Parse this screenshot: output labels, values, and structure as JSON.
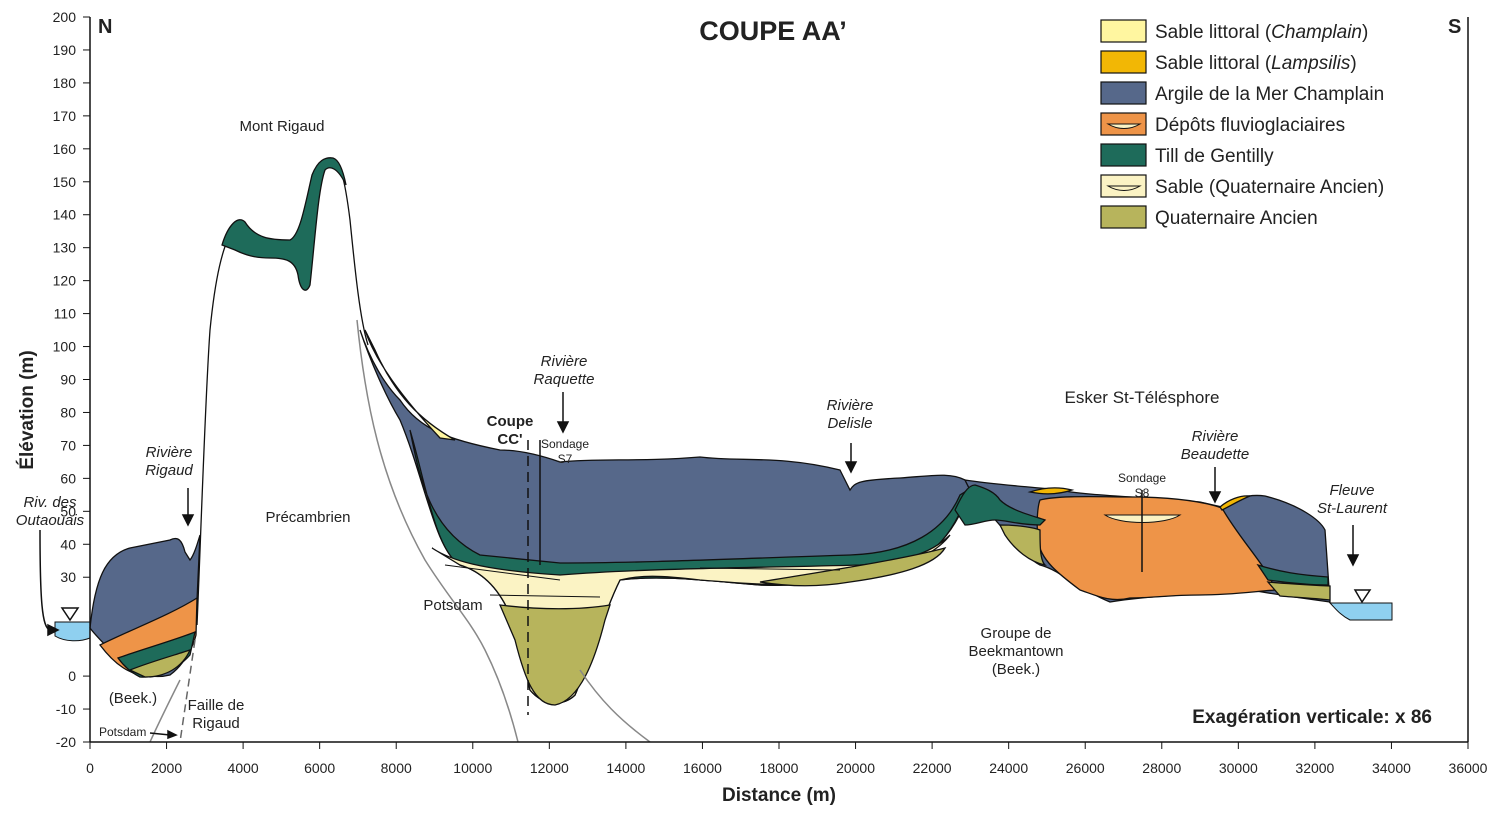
{
  "header": {
    "title": "COUPE AA’",
    "north": "N",
    "south": "S"
  },
  "axes": {
    "x": {
      "label": "Distance (m)",
      "lim": [
        0,
        36000
      ],
      "ticks": [
        0,
        2000,
        4000,
        6000,
        8000,
        10000,
        12000,
        14000,
        16000,
        18000,
        20000,
        22000,
        24000,
        26000,
        28000,
        30000,
        32000,
        34000,
        36000
      ]
    },
    "y": {
      "label": "Élévation (m)",
      "lim": [
        -20,
        200
      ],
      "ticks": [
        -20,
        -10,
        0,
        30,
        40,
        50,
        60,
        70,
        80,
        90,
        100,
        110,
        120,
        130,
        140,
        150,
        160,
        170,
        180,
        190,
        200
      ]
    }
  },
  "legend": [
    {
      "text": "Sable littoral (",
      "italic": "Champlain",
      "suffix": ")",
      "color": "#fff6a0"
    },
    {
      "text": "Sable littoral (",
      "italic": "Lampsilis",
      "suffix": ")",
      "color": "#f2b705"
    },
    {
      "text": "Argile de la Mer Champlain",
      "color": "#56688a"
    },
    {
      "text": "Dépôts fluvioglaciaires",
      "color": "#ee9448",
      "lens": true
    },
    {
      "text": "Till de Gentilly",
      "color": "#1e6b5a"
    },
    {
      "text": "Sable (Quaternaire Ancien)",
      "color": "#fbf3c4",
      "lens": true
    },
    {
      "text": "Quaternaire Ancien",
      "color": "#b7b45c"
    }
  ],
  "labels": {
    "mont_rigaud": [
      "Mont Rigaud"
    ],
    "precambrien": [
      "Précambrien"
    ],
    "potsdam": [
      "Potsdam"
    ],
    "potsdam_small": [
      "Potsdam"
    ],
    "beek": [
      "(Beek.)"
    ],
    "faille": [
      "Faille de",
      "Rigaud"
    ],
    "riv_outaouais": [
      "Riv. des",
      "Outaouais"
    ],
    "riviere_rigaud": [
      "Rivière",
      "Rigaud"
    ],
    "riviere_raquette": [
      "Rivière",
      "Raquette"
    ],
    "coupe_cc": [
      "Coupe",
      "CC'"
    ],
    "sondage_s7": [
      "Sondage",
      "S7"
    ],
    "riviere_delisle": [
      "Rivière",
      "Delisle"
    ],
    "esker": [
      "Esker St-Télésphore"
    ],
    "sondage_s8": [
      "Sondage",
      "S8"
    ],
    "riviere_beaudette": [
      "Rivière",
      "Beaudette"
    ],
    "fleuve": [
      "Fleuve",
      "St-Laurent"
    ],
    "beekmantown": [
      "Groupe de",
      "Beekmantown",
      "(Beek.)"
    ],
    "exageration": [
      "Exagération verticale: x 86"
    ]
  }
}
